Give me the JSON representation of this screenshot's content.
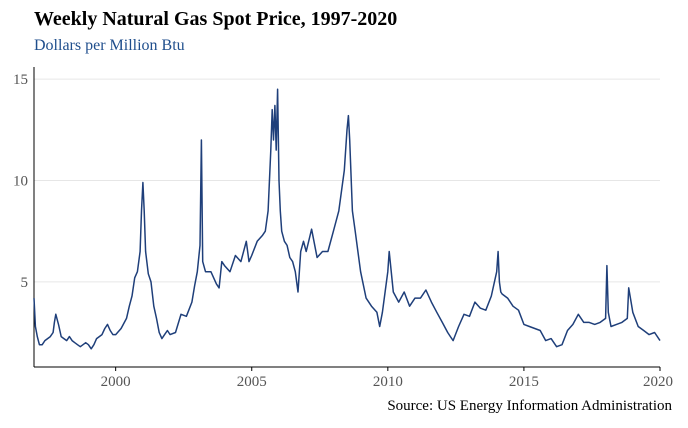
{
  "chart_data": {
    "type": "line",
    "title": "Weekly Natural Gas Spot Price, 1997-2020",
    "subtitle": "Dollars per Million Btu",
    "source": "Source: US Energy Information Administration",
    "xlabel": "",
    "ylabel": "",
    "xlim": [
      1997.0,
      2020.0
    ],
    "ylim": [
      0.8,
      15.6
    ],
    "x_ticks": [
      "2000",
      "2005",
      "2010",
      "2015",
      "2020"
    ],
    "y_ticks": [
      "5",
      "10",
      "15"
    ],
    "grid": "horizontal",
    "legend": "none",
    "line_color": "#1f3f7a",
    "series": [
      {
        "x": [
          1997.0,
          1997.05,
          1997.12,
          1997.2,
          1997.3,
          1997.4,
          1997.5,
          1997.6,
          1997.7,
          1997.75,
          1997.8,
          1997.9,
          1998.0,
          1998.1,
          1998.2,
          1998.3,
          1998.4,
          1998.5,
          1998.6,
          1998.7,
          1998.8,
          1998.9,
          1999.0,
          1999.1,
          1999.2,
          1999.3,
          1999.4,
          1999.5,
          1999.6,
          1999.7,
          1999.8,
          1999.9,
          2000.0,
          2000.2,
          2000.4,
          2000.5,
          2000.6,
          2000.7,
          2000.8,
          2000.9,
          2000.95,
          2001.0,
          2001.05,
          2001.1,
          2001.2,
          2001.3,
          2001.4,
          2001.5,
          2001.6,
          2001.7,
          2001.8,
          2001.9,
          2002.0,
          2002.2,
          2002.4,
          2002.6,
          2002.8,
          2002.9,
          2003.0,
          2003.1,
          2003.15,
          2003.2,
          2003.3,
          2003.5,
          2003.7,
          2003.8,
          2003.9,
          2004.0,
          2004.2,
          2004.4,
          2004.6,
          2004.8,
          2004.9,
          2005.0,
          2005.2,
          2005.4,
          2005.5,
          2005.6,
          2005.7,
          2005.75,
          2005.8,
          2005.85,
          2005.9,
          2005.95,
          2006.0,
          2006.05,
          2006.1,
          2006.2,
          2006.3,
          2006.4,
          2006.5,
          2006.6,
          2006.7,
          2006.8,
          2006.9,
          2007.0,
          2007.2,
          2007.4,
          2007.6,
          2007.8,
          2008.0,
          2008.2,
          2008.4,
          2008.5,
          2008.55,
          2008.6,
          2008.7,
          2008.8,
          2008.9,
          2009.0,
          2009.2,
          2009.4,
          2009.6,
          2009.7,
          2009.8,
          2009.9,
          2010.0,
          2010.05,
          2010.2,
          2010.4,
          2010.6,
          2010.8,
          2011.0,
          2011.2,
          2011.4,
          2011.6,
          2011.8,
          2012.0,
          2012.2,
          2012.3,
          2012.4,
          2012.6,
          2012.8,
          2013.0,
          2013.2,
          2013.4,
          2013.6,
          2013.8,
          2014.0,
          2014.05,
          2014.1,
          2014.15,
          2014.2,
          2014.4,
          2014.6,
          2014.8,
          2015.0,
          2015.2,
          2015.4,
          2015.6,
          2015.8,
          2016.0,
          2016.2,
          2016.4,
          2016.6,
          2016.8,
          2017.0,
          2017.2,
          2017.4,
          2017.6,
          2017.8,
          2018.0,
          2018.05,
          2018.1,
          2018.2,
          2018.4,
          2018.6,
          2018.8,
          2018.85,
          2018.9,
          2019.0,
          2019.2,
          2019.4,
          2019.6,
          2019.8,
          2020.0
        ],
        "y": [
          4.2,
          2.8,
          2.3,
          1.9,
          1.9,
          2.1,
          2.2,
          2.3,
          2.5,
          3.0,
          3.4,
          2.9,
          2.3,
          2.2,
          2.1,
          2.3,
          2.1,
          2.0,
          1.9,
          1.8,
          1.9,
          2.0,
          1.9,
          1.7,
          1.9,
          2.2,
          2.3,
          2.4,
          2.7,
          2.9,
          2.6,
          2.4,
          2.4,
          2.7,
          3.2,
          3.8,
          4.3,
          5.2,
          5.5,
          6.5,
          8.5,
          9.9,
          8.5,
          6.5,
          5.4,
          5.0,
          3.8,
          3.2,
          2.5,
          2.2,
          2.4,
          2.6,
          2.4,
          2.5,
          3.4,
          3.3,
          4.0,
          4.8,
          5.5,
          6.8,
          12.0,
          6.0,
          5.5,
          5.5,
          4.9,
          4.7,
          6.0,
          5.8,
          5.5,
          6.3,
          6.0,
          7.0,
          6.0,
          6.3,
          7.0,
          7.3,
          7.5,
          8.5,
          11.5,
          13.5,
          12.0,
          13.7,
          11.5,
          14.5,
          10.0,
          8.5,
          7.5,
          7.0,
          6.8,
          6.2,
          6.0,
          5.5,
          4.5,
          6.5,
          7.0,
          6.5,
          7.6,
          6.2,
          6.5,
          6.5,
          7.5,
          8.5,
          10.5,
          12.5,
          13.2,
          12.0,
          8.5,
          7.5,
          6.5,
          5.5,
          4.2,
          3.8,
          3.5,
          2.8,
          3.5,
          4.5,
          5.5,
          6.5,
          4.5,
          4.0,
          4.5,
          3.8,
          4.2,
          4.2,
          4.6,
          4.0,
          3.5,
          3.0,
          2.5,
          2.3,
          2.1,
          2.8,
          3.4,
          3.3,
          4.0,
          3.7,
          3.6,
          4.3,
          5.5,
          6.5,
          5.0,
          4.5,
          4.4,
          4.2,
          3.8,
          3.6,
          2.9,
          2.8,
          2.7,
          2.6,
          2.1,
          2.2,
          1.8,
          1.9,
          2.6,
          2.9,
          3.4,
          3.0,
          3.0,
          2.9,
          3.0,
          3.2,
          5.8,
          3.5,
          2.8,
          2.9,
          3.0,
          3.2,
          4.7,
          4.3,
          3.5,
          2.8,
          2.6,
          2.4,
          2.5,
          2.1
        ]
      }
    ]
  }
}
